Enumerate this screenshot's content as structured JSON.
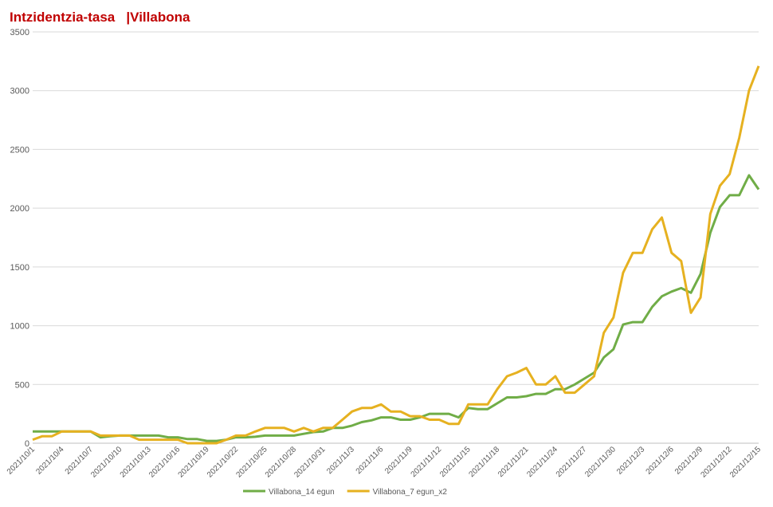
{
  "chart_data": {
    "type": "line",
    "title": "Intzidentzia-tasa   |Villabona",
    "categories": [
      "2021/10/1",
      null,
      null,
      "2021/10/4",
      null,
      null,
      "2021/10/7",
      null,
      null,
      "2021/10/10",
      null,
      null,
      "2021/10/13",
      null,
      null,
      "2021/10/16",
      null,
      null,
      "2021/10/19",
      null,
      null,
      "2021/10/22",
      null,
      null,
      "2021/10/25",
      null,
      null,
      "2021/10/28",
      null,
      null,
      "2021/10/31",
      null,
      null,
      "2021/11/3",
      null,
      null,
      "2021/11/6",
      null,
      null,
      "2021/11/9",
      null,
      null,
      "2021/11/12",
      null,
      null,
      "2021/11/15",
      null,
      null,
      "2021/11/18",
      null,
      null,
      "2021/11/21",
      null,
      null,
      "2021/11/24",
      null,
      null,
      "2021/11/27",
      null,
      null,
      "2021/11/30",
      null,
      null,
      "2021/12/3",
      null,
      null,
      "2021/12/6",
      null,
      null,
      "2021/12/9",
      null,
      null,
      "2021/12/12",
      null,
      null,
      "2021/12/15"
    ],
    "series": [
      {
        "name": "Villabona_14 egun",
        "color": "#70ad47",
        "values": [
          100,
          100,
          100,
          100,
          100,
          100,
          100,
          50,
          60,
          65,
          65,
          65,
          65,
          65,
          50,
          50,
          35,
          35,
          20,
          20,
          30,
          50,
          50,
          55,
          65,
          65,
          65,
          65,
          80,
          95,
          100,
          130,
          130,
          150,
          180,
          195,
          220,
          220,
          200,
          200,
          220,
          250,
          250,
          250,
          220,
          300,
          290,
          290,
          340,
          390,
          390,
          400,
          420,
          420,
          460,
          460,
          500,
          550,
          600,
          730,
          800,
          1010,
          1030,
          1030,
          1160,
          1250,
          1290,
          1320,
          1280,
          1440,
          1790,
          2010,
          2110,
          2110,
          2280,
          2160
        ]
      },
      {
        "name": "Villabona_7 egun_x2",
        "color": "#e6b120",
        "values": [
          30,
          60,
          60,
          100,
          100,
          100,
          100,
          65,
          65,
          65,
          65,
          30,
          30,
          30,
          30,
          30,
          0,
          0,
          0,
          0,
          30,
          65,
          65,
          100,
          130,
          130,
          130,
          100,
          130,
          100,
          130,
          130,
          200,
          270,
          300,
          300,
          330,
          270,
          270,
          230,
          230,
          200,
          200,
          165,
          165,
          330,
          330,
          330,
          460,
          570,
          600,
          640,
          500,
          500,
          570,
          430,
          430,
          500,
          570,
          940,
          1070,
          1450,
          1620,
          1620,
          1820,
          1920,
          1620,
          1550,
          1110,
          1240,
          1950,
          2190,
          2290,
          2600,
          3000,
          3210
        ]
      }
    ],
    "ylim": [
      0,
      3500
    ],
    "yticks": [
      0,
      500,
      1000,
      1500,
      2000,
      2500,
      3000,
      3500
    ],
    "grid": true,
    "legend": "bottom"
  }
}
